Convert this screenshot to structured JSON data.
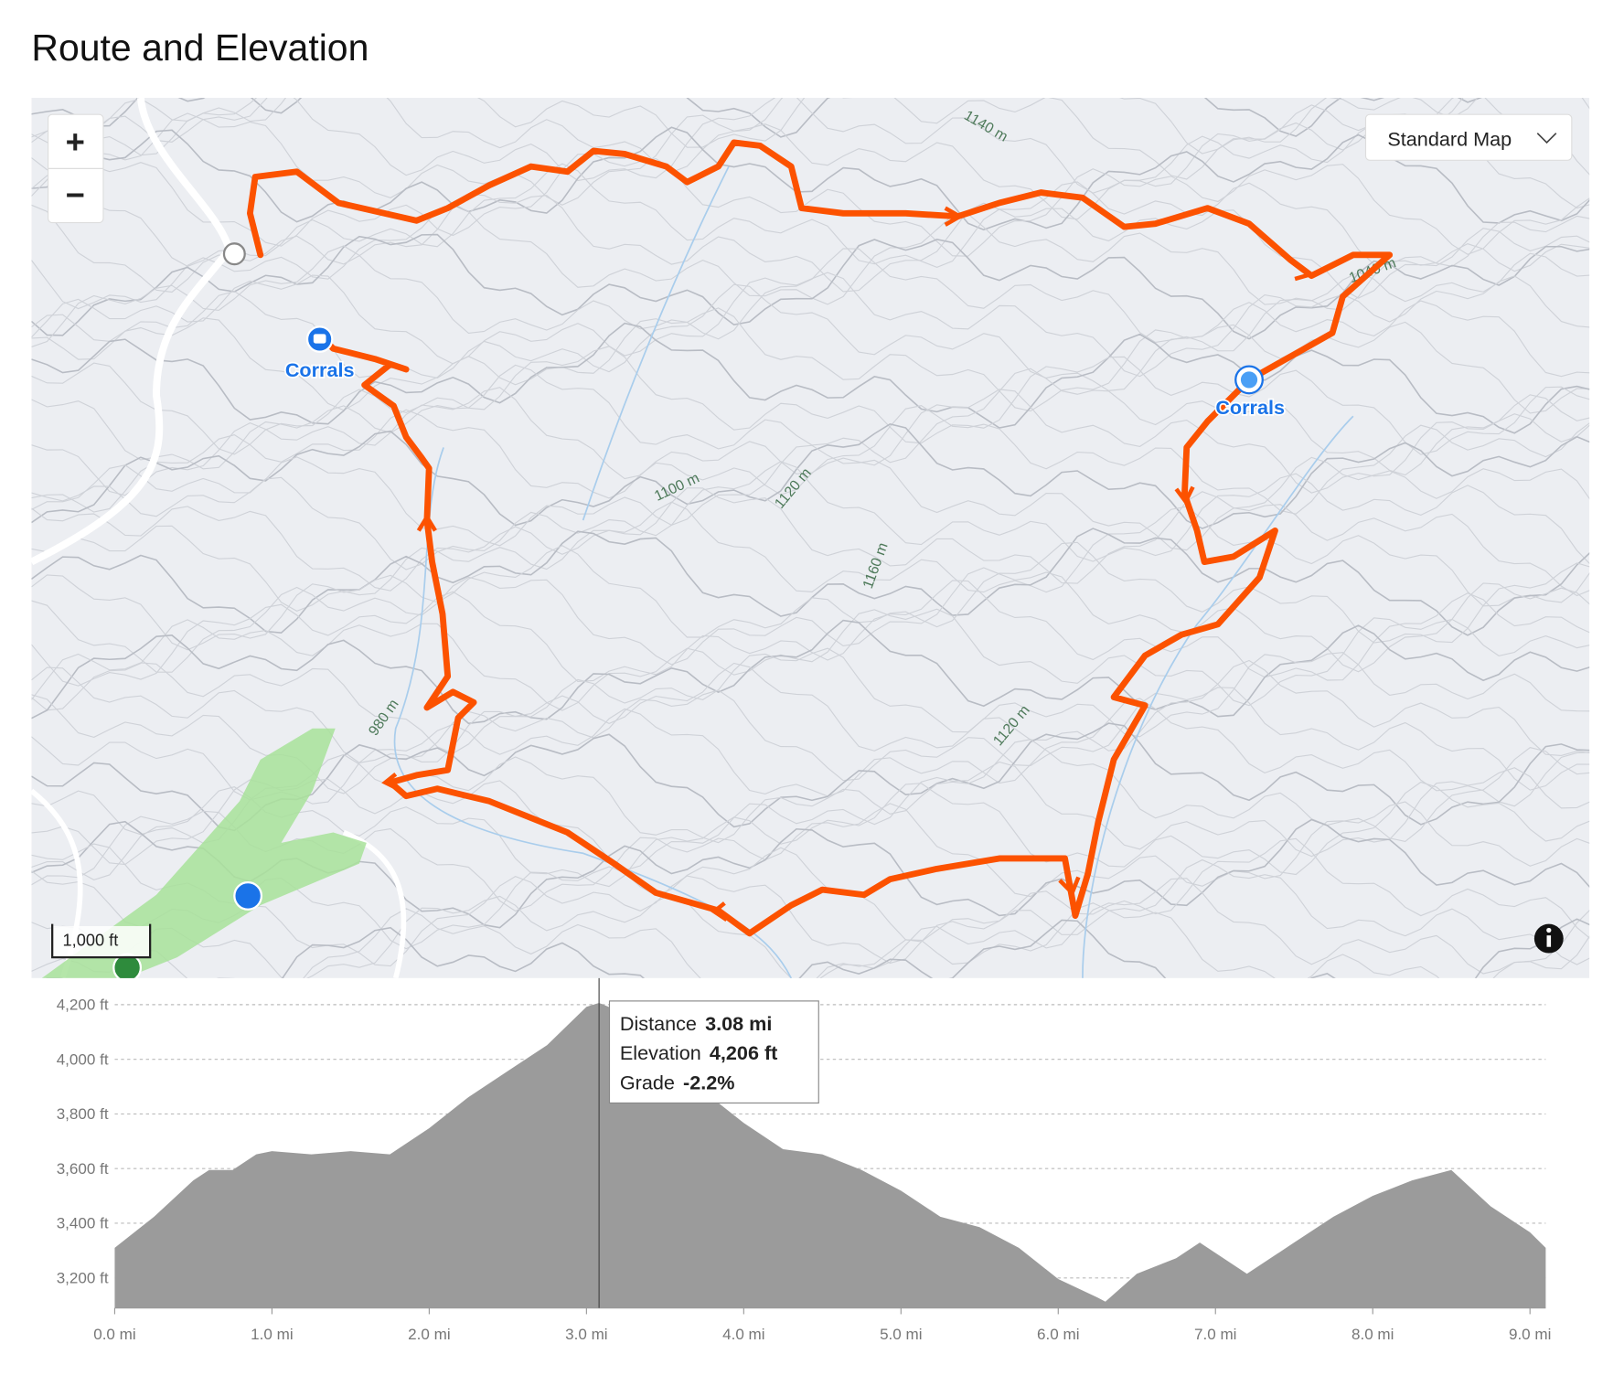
{
  "header": {
    "title": "Route and Elevation"
  },
  "map": {
    "map_type": "Standard Map",
    "zoom_in": "+",
    "zoom_out": "−",
    "scale": "1,000 ft",
    "places": [
      "Corrals",
      "Corrals"
    ],
    "contour_labels": [
      "1140 m",
      "1100 m",
      "1120 m",
      "1160 m",
      "980 m",
      "1120 m",
      "1040 m"
    ]
  },
  "chart_data": {
    "type": "area",
    "x": [
      0,
      0.25,
      0.5,
      0.6,
      0.75,
      0.9,
      1.0,
      1.25,
      1.5,
      1.75,
      2.0,
      2.25,
      2.5,
      2.75,
      3.0,
      3.08,
      3.25,
      3.5,
      3.75,
      4.0,
      4.25,
      4.5,
      4.75,
      5.0,
      5.25,
      5.5,
      5.75,
      6.0,
      6.25,
      6.3,
      6.5,
      6.75,
      6.9,
      7.0,
      7.2,
      7.5,
      7.75,
      8.0,
      8.25,
      8.5,
      8.75,
      9.0,
      9.1
    ],
    "values": [
      3310,
      3424,
      3557,
      3595,
      3595,
      3652,
      3664,
      3652,
      3664,
      3652,
      3748,
      3862,
      3957,
      4052,
      4192,
      4206,
      4166,
      3995,
      3881,
      3767,
      3671,
      3652,
      3595,
      3519,
      3424,
      3386,
      3310,
      3196,
      3128,
      3113,
      3215,
      3272,
      3329,
      3291,
      3215,
      3329,
      3424,
      3500,
      3557,
      3595,
      3462,
      3367,
      3310
    ],
    "color": "#9b9b9b",
    "xlim": [
      0,
      9.1
    ],
    "ylim": [
      3090,
      4240
    ],
    "xticks": [
      {
        "value": 0,
        "label": "0.0 mi"
      },
      {
        "value": 1,
        "label": "1.0 mi"
      },
      {
        "value": 2,
        "label": "2.0 mi"
      },
      {
        "value": 3,
        "label": "3.0 mi"
      },
      {
        "value": 4,
        "label": "4.0 mi"
      },
      {
        "value": 5,
        "label": "5.0 mi"
      },
      {
        "value": 6,
        "label": "6.0 mi"
      },
      {
        "value": 7,
        "label": "7.0 mi"
      },
      {
        "value": 8,
        "label": "8.0 mi"
      },
      {
        "value": 9,
        "label": "9.0 mi"
      }
    ],
    "yticks": [
      {
        "value": 3200,
        "label": "3,200 ft"
      },
      {
        "value": 3400,
        "label": "3,400 ft"
      },
      {
        "value": 3600,
        "label": "3,600 ft"
      },
      {
        "value": 3800,
        "label": "3,800 ft"
      },
      {
        "value": 4000,
        "label": "4,000 ft"
      },
      {
        "value": 4200,
        "label": "4,200 ft"
      }
    ],
    "grid": true,
    "cursor_x": 3.08,
    "tooltip": [
      {
        "label": "Distance",
        "value": "3.08 mi"
      },
      {
        "label": "Elevation",
        "value": "4,206 ft"
      },
      {
        "label": "Grade",
        "value": "-2.2%"
      }
    ]
  }
}
